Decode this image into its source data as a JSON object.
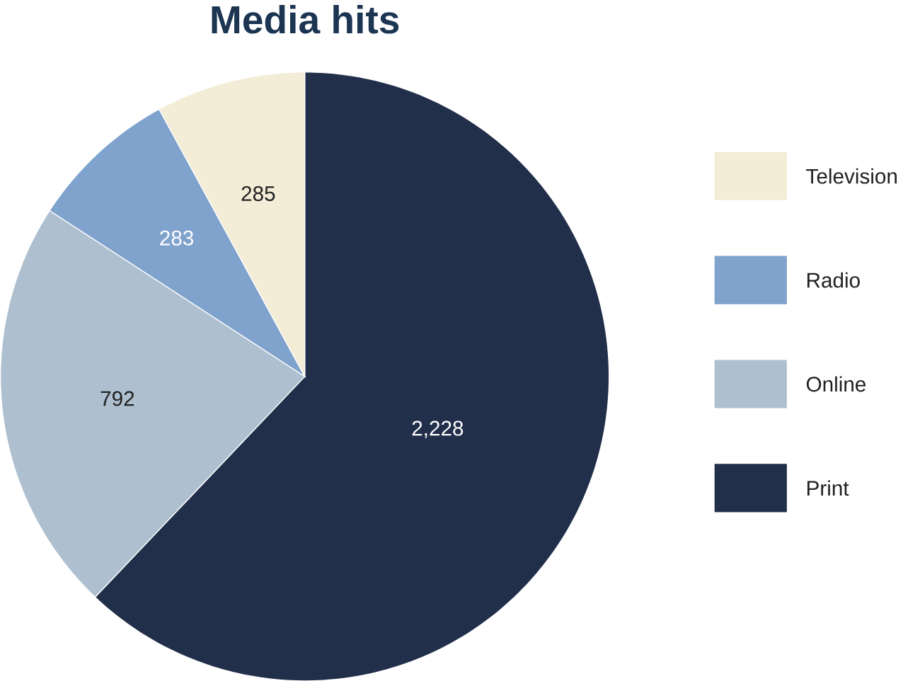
{
  "chart_data": {
    "type": "pie",
    "title": "Media hits",
    "categories": [
      "Print",
      "Online",
      "Radio",
      "Television"
    ],
    "values": [
      2228,
      792,
      283,
      285
    ],
    "colors": [
      "#222f4a",
      "#aec0d0",
      "#7fa3cc",
      "#f3ecd6"
    ],
    "value_labels": [
      "2,228",
      "792",
      "283",
      "285"
    ],
    "legend": "right"
  }
}
